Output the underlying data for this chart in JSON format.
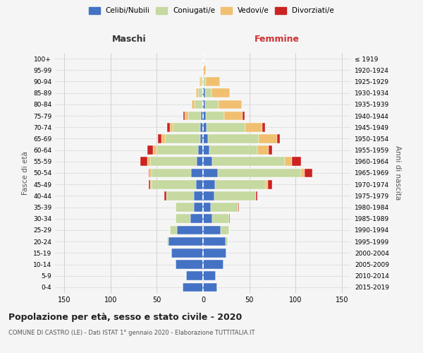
{
  "age_groups": [
    "0-4",
    "5-9",
    "10-14",
    "15-19",
    "20-24",
    "25-29",
    "30-34",
    "35-39",
    "40-44",
    "45-49",
    "50-54",
    "55-59",
    "60-64",
    "65-69",
    "70-74",
    "75-79",
    "80-84",
    "85-89",
    "90-94",
    "95-99",
    "100+"
  ],
  "birth_years": [
    "2015-2019",
    "2010-2014",
    "2005-2009",
    "2000-2004",
    "1995-1999",
    "1990-1994",
    "1985-1989",
    "1980-1984",
    "1975-1979",
    "1970-1974",
    "1965-1969",
    "1960-1964",
    "1955-1959",
    "1950-1954",
    "1945-1949",
    "1940-1944",
    "1935-1939",
    "1930-1934",
    "1925-1929",
    "1920-1924",
    "≤ 1919"
  ],
  "colors": {
    "celibi": "#4472C4",
    "coniugati": "#c5d9a0",
    "vedovi": "#f0c070",
    "divorziati": "#cc2222"
  },
  "maschi": {
    "celibi": [
      22,
      18,
      30,
      34,
      37,
      28,
      14,
      10,
      10,
      8,
      13,
      7,
      5,
      3,
      3,
      2,
      1,
      1,
      0,
      0,
      0
    ],
    "coniugati": [
      0,
      0,
      0,
      0,
      2,
      8,
      16,
      20,
      30,
      48,
      43,
      50,
      45,
      38,
      30,
      14,
      8,
      4,
      2,
      0,
      0
    ],
    "vedovi": [
      0,
      0,
      0,
      0,
      0,
      0,
      0,
      0,
      0,
      1,
      2,
      3,
      4,
      4,
      3,
      4,
      3,
      3,
      2,
      0,
      0
    ],
    "divorziati": [
      0,
      0,
      0,
      0,
      0,
      0,
      0,
      0,
      2,
      2,
      1,
      8,
      6,
      4,
      3,
      1,
      0,
      0,
      0,
      0,
      0
    ]
  },
  "femmine": {
    "celibi": [
      15,
      14,
      22,
      25,
      24,
      19,
      10,
      8,
      12,
      13,
      16,
      10,
      7,
      5,
      4,
      3,
      2,
      2,
      0,
      0,
      0
    ],
    "coniugati": [
      0,
      0,
      0,
      0,
      3,
      9,
      18,
      30,
      45,
      55,
      90,
      78,
      52,
      55,
      42,
      20,
      15,
      7,
      3,
      0,
      0
    ],
    "vedovi": [
      0,
      0,
      0,
      0,
      0,
      0,
      0,
      0,
      0,
      2,
      4,
      8,
      12,
      20,
      18,
      20,
      25,
      20,
      15,
      3,
      1
    ],
    "divorziati": [
      0,
      0,
      0,
      0,
      0,
      0,
      1,
      1,
      2,
      5,
      8,
      10,
      4,
      3,
      3,
      2,
      0,
      0,
      0,
      0,
      0
    ]
  },
  "title": "Popolazione per età, sesso e stato civile - 2020",
  "subtitle": "COMUNE DI CASTRO (LE) - Dati ISTAT 1° gennaio 2020 - Elaborazione TUTTITALIA.IT",
  "xlabel_left": "Maschi",
  "xlabel_right": "Femmine",
  "ylabel_left": "Fasce di età",
  "ylabel_right": "Anni di nascita",
  "xlim": 160,
  "bg_color": "#f5f5f5",
  "grid_color": "#cccccc",
  "legend_labels": [
    "Celibi/Nubili",
    "Coniugati/e",
    "Vedovi/e",
    "Divorziati/e"
  ]
}
